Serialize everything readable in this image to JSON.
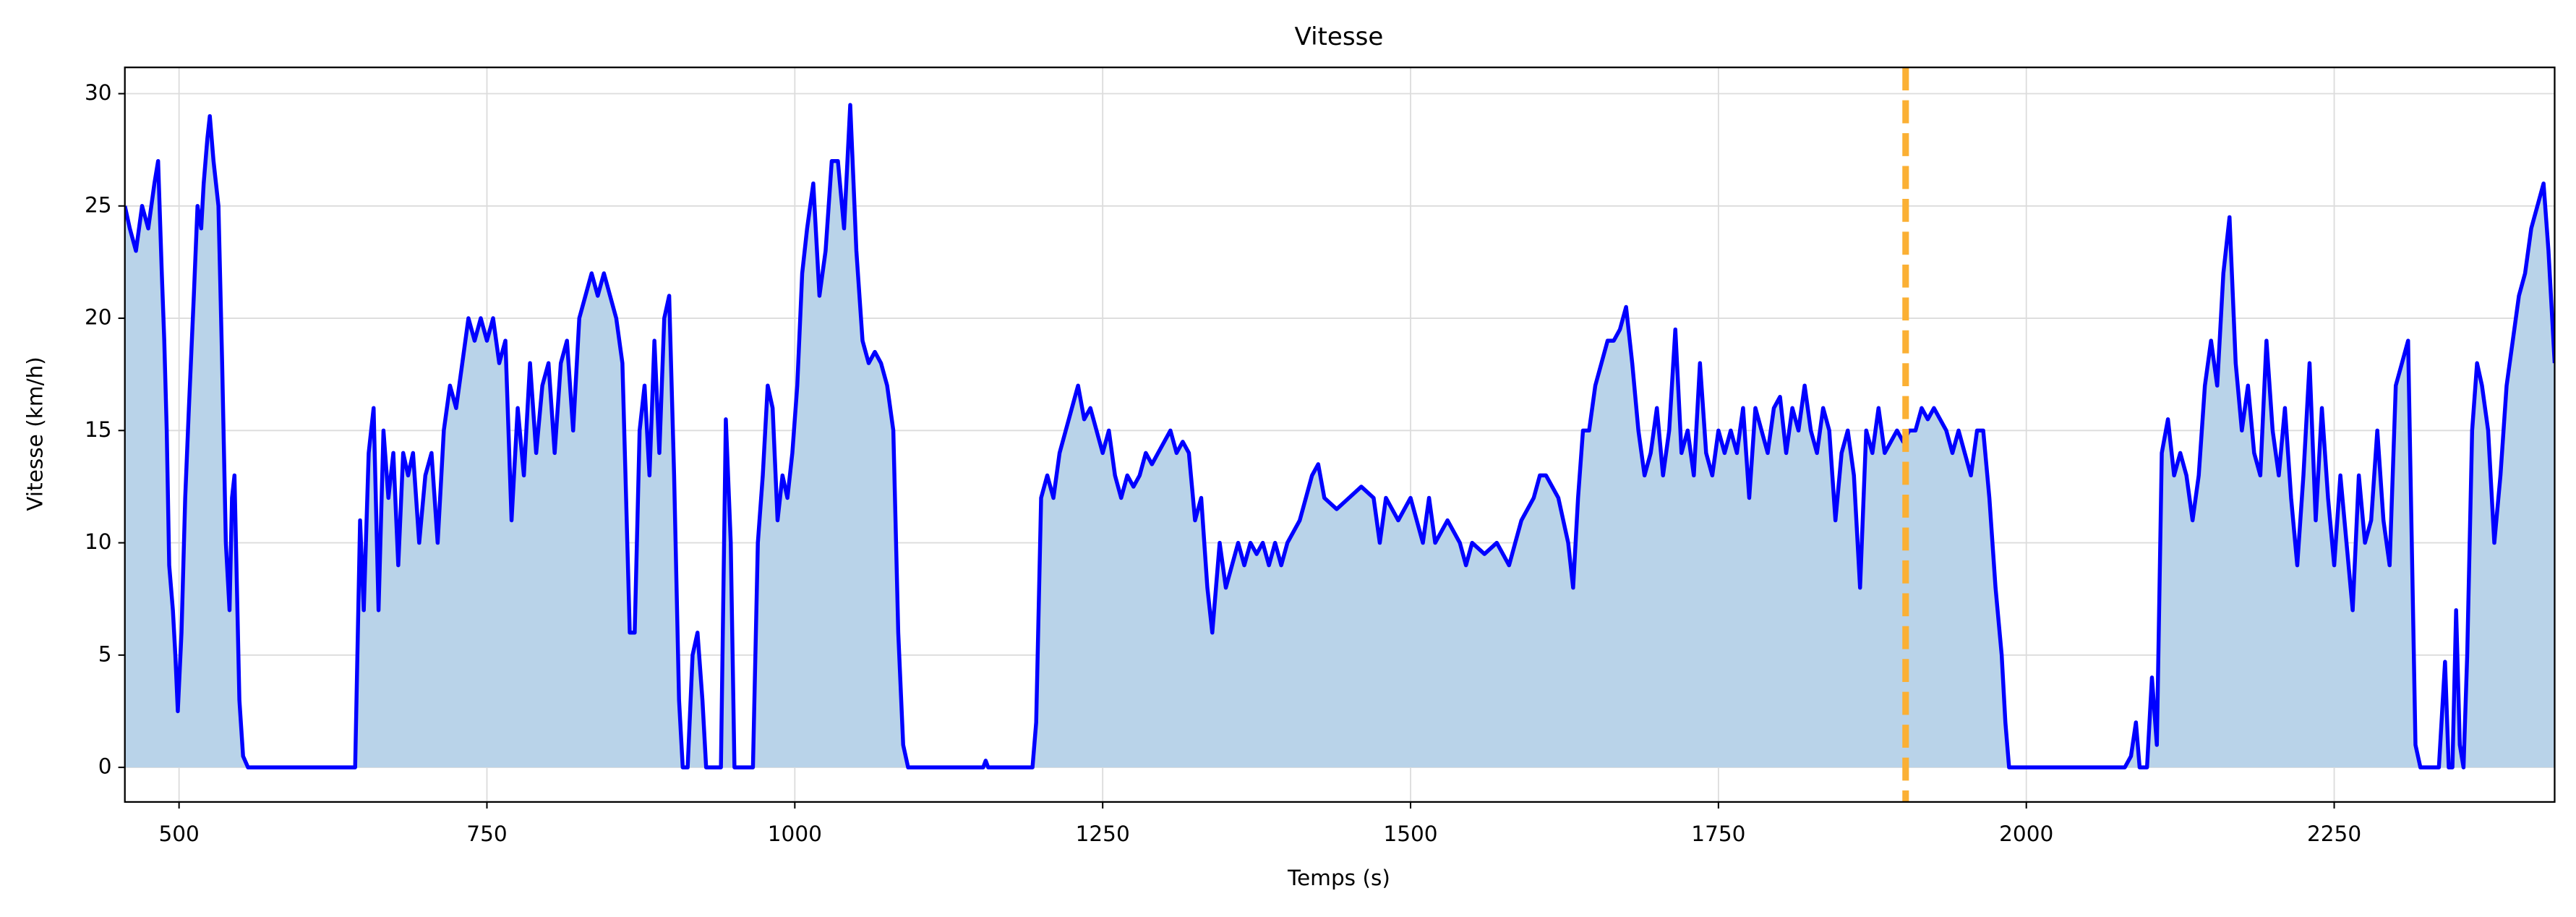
{
  "chart_data": {
    "type": "line",
    "title": "Vitesse",
    "x_label": "Temps (s)",
    "y_label": "Vitesse (km/h)",
    "x": [
      456,
      460,
      465,
      470,
      475,
      480,
      483,
      486,
      488,
      490,
      492,
      495,
      497,
      499,
      502,
      505,
      508,
      512,
      515,
      518,
      520,
      523,
      525,
      528,
      532,
      535,
      538,
      541,
      543,
      545,
      547,
      549,
      552,
      556,
      643,
      647,
      650,
      654,
      658,
      662,
      666,
      670,
      674,
      678,
      682,
      686,
      690,
      695,
      700,
      705,
      710,
      715,
      720,
      725,
      730,
      735,
      740,
      745,
      750,
      755,
      760,
      765,
      770,
      775,
      780,
      785,
      790,
      795,
      800,
      805,
      810,
      815,
      820,
      825,
      830,
      835,
      840,
      845,
      850,
      855,
      860,
      863,
      866,
      870,
      874,
      878,
      882,
      886,
      890,
      894,
      898,
      902,
      906,
      909,
      913,
      917,
      921,
      925,
      928,
      940,
      944,
      948,
      951,
      966,
      970,
      974,
      978,
      982,
      986,
      990,
      994,
      998,
      1002,
      1006,
      1010,
      1015,
      1020,
      1025,
      1030,
      1035,
      1040,
      1045,
      1050,
      1055,
      1060,
      1065,
      1070,
      1075,
      1080,
      1084,
      1088,
      1092,
      1153,
      1155,
      1157,
      1193,
      1196,
      1200,
      1205,
      1210,
      1215,
      1220,
      1225,
      1230,
      1235,
      1240,
      1245,
      1250,
      1255,
      1260,
      1265,
      1270,
      1275,
      1280,
      1285,
      1290,
      1295,
      1300,
      1305,
      1310,
      1315,
      1320,
      1325,
      1330,
      1335,
      1339,
      1345,
      1350,
      1355,
      1360,
      1365,
      1370,
      1375,
      1380,
      1385,
      1390,
      1395,
      1400,
      1410,
      1415,
      1420,
      1425,
      1430,
      1440,
      1450,
      1460,
      1470,
      1475,
      1480,
      1490,
      1500,
      1505,
      1510,
      1515,
      1520,
      1530,
      1540,
      1545,
      1550,
      1560,
      1570,
      1580,
      1590,
      1600,
      1605,
      1610,
      1620,
      1628,
      1632,
      1636,
      1640,
      1645,
      1650,
      1655,
      1660,
      1665,
      1670,
      1675,
      1680,
      1685,
      1690,
      1695,
      1700,
      1705,
      1710,
      1715,
      1720,
      1725,
      1730,
      1735,
      1740,
      1745,
      1750,
      1755,
      1760,
      1765,
      1770,
      1775,
      1780,
      1785,
      1790,
      1795,
      1800,
      1805,
      1810,
      1815,
      1820,
      1825,
      1830,
      1835,
      1840,
      1845,
      1850,
      1855,
      1860,
      1865,
      1870,
      1875,
      1880,
      1885,
      1890,
      1895,
      1900,
      1905,
      1910,
      1915,
      1920,
      1925,
      1930,
      1935,
      1940,
      1945,
      1950,
      1955,
      1960,
      1965,
      1970,
      1975,
      1980,
      1983,
      1986,
      2080,
      2085,
      2089,
      2092,
      2098,
      2102,
      2106,
      2110,
      2115,
      2120,
      2125,
      2130,
      2135,
      2140,
      2145,
      2150,
      2155,
      2160,
      2165,
      2170,
      2175,
      2180,
      2185,
      2190,
      2195,
      2200,
      2205,
      2210,
      2215,
      2220,
      2225,
      2230,
      2235,
      2240,
      2245,
      2250,
      2255,
      2260,
      2265,
      2270,
      2275,
      2280,
      2285,
      2290,
      2295,
      2300,
      2305,
      2310,
      2313,
      2316,
      2320,
      2335,
      2340,
      2343,
      2346,
      2349,
      2352,
      2355,
      2358,
      2362,
      2366,
      2370,
      2375,
      2380,
      2385,
      2390,
      2395,
      2400,
      2405,
      2410,
      2415,
      2420,
      2424,
      2427,
      2429
    ],
    "values": [
      25,
      24,
      23,
      25,
      24,
      26,
      27,
      22,
      19,
      15,
      9,
      7,
      5,
      2.5,
      6,
      12,
      16,
      21,
      25,
      24,
      26,
      28,
      29,
      27,
      25,
      18,
      10,
      7,
      12,
      13,
      8,
      3,
      0.5,
      0,
      0,
      11,
      7,
      14,
      16,
      7,
      15,
      12,
      14,
      9,
      14,
      13,
      14,
      10,
      13,
      14,
      10,
      15,
      17,
      16,
      18,
      20,
      19,
      20,
      19,
      20,
      18,
      19,
      11,
      16,
      13,
      18,
      14,
      17,
      18,
      14,
      18,
      19,
      15,
      20,
      21,
      22,
      21,
      22,
      21,
      20,
      18,
      12,
      6,
      6,
      15,
      17,
      13,
      19,
      14,
      20,
      21,
      13,
      3,
      0,
      0,
      5,
      6,
      3,
      0,
      0,
      15.5,
      10,
      0,
      0,
      10,
      13,
      17,
      16,
      11,
      13,
      12,
      14,
      17,
      22,
      24,
      26,
      21,
      23,
      27,
      27,
      24,
      29.5,
      23,
      19,
      18,
      18.5,
      18,
      17,
      15,
      6,
      1,
      0,
      0,
      0.3,
      0,
      0,
      2,
      12,
      13,
      12,
      14,
      15,
      16,
      17,
      15.5,
      16,
      15,
      14,
      15,
      13,
      12,
      13,
      12.5,
      13,
      14,
      13.5,
      14,
      14.5,
      15,
      14,
      14.5,
      14,
      11,
      12,
      8,
      6,
      10,
      8,
      9,
      10,
      9,
      10,
      9.5,
      10,
      9,
      10,
      9,
      10,
      11,
      12,
      13,
      13.5,
      12,
      11.5,
      12,
      12.5,
      12,
      10,
      12,
      11,
      12,
      11,
      10,
      12,
      10,
      11,
      10,
      9,
      10,
      9.5,
      10,
      9,
      11,
      12,
      13,
      13,
      12,
      10,
      8,
      12,
      15,
      15,
      17,
      18,
      19,
      19,
      19.5,
      20.5,
      18,
      15,
      13,
      14,
      16,
      13,
      15,
      19.5,
      14,
      15,
      13,
      18,
      14,
      13,
      15,
      14,
      15,
      14,
      16,
      12,
      16,
      15,
      14,
      16,
      16.5,
      14,
      16,
      15,
      17,
      15,
      14,
      16,
      15,
      11,
      14,
      15,
      13,
      8,
      15,
      14,
      16,
      14,
      14.5,
      15,
      14.5,
      15,
      15,
      16,
      15.5,
      16,
      15.5,
      15,
      14,
      15,
      14,
      13,
      15,
      15,
      12,
      8,
      5,
      2,
      0,
      0,
      0.5,
      2,
      0,
      0,
      4,
      1,
      14,
      15.5,
      13,
      14,
      13,
      11,
      13,
      17,
      19,
      17,
      22,
      24.5,
      18,
      15,
      17,
      14,
      13,
      19,
      15,
      13,
      16,
      12,
      9,
      13,
      18,
      11,
      16,
      12,
      9,
      13,
      10,
      7,
      13,
      10,
      11,
      15,
      11,
      9,
      17,
      18,
      19,
      10,
      1,
      0,
      0,
      4.7,
      0,
      0,
      7,
      1,
      0,
      5,
      15,
      18,
      17,
      15,
      10,
      13,
      17,
      19,
      21,
      22,
      24,
      25,
      26,
      23,
      20,
      18
    ],
    "color": "#0000ff",
    "fill_color": "#b9d3e9",
    "xlim": [
      456,
      2429
    ],
    "ylim": [
      -1.54,
      31.17
    ],
    "xticks": [
      500,
      750,
      1000,
      1250,
      1500,
      1750,
      2000,
      2250
    ],
    "yticks": [
      0,
      5,
      10,
      15,
      20,
      25,
      30
    ],
    "grid": true,
    "vline": {
      "x": 1902,
      "color": "#fbb034",
      "dashed": true
    }
  }
}
